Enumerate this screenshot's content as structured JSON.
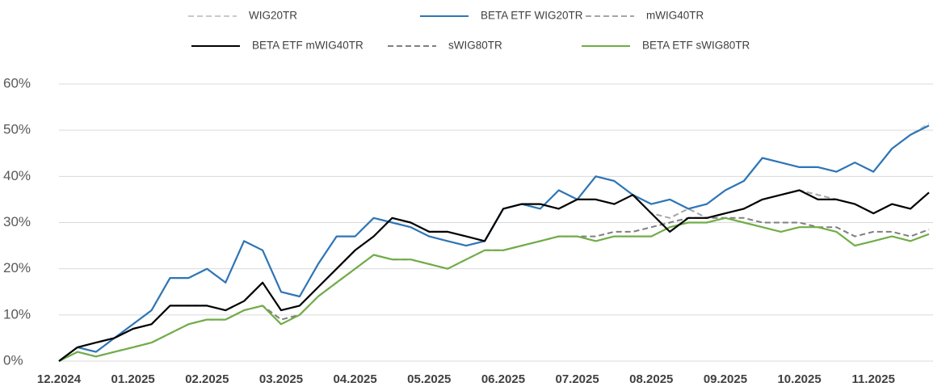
{
  "chart_data": {
    "type": "line",
    "categories": [
      "12.2024",
      null,
      null,
      null,
      "01.2025",
      null,
      null,
      null,
      "02.2025",
      null,
      null,
      null,
      "03.2025",
      null,
      null,
      null,
      "04.2025",
      null,
      null,
      null,
      "05.2025",
      null,
      null,
      null,
      "06.2025",
      null,
      null,
      null,
      "07.2025",
      null,
      null,
      null,
      "08.2025",
      null,
      null,
      null,
      "09.2025",
      null,
      null,
      null,
      "10.2025",
      null,
      null,
      null,
      "11.2025",
      null,
      null,
      null
    ],
    "series": [
      {
        "name": "WIG20TR",
        "color": "#c9c9c9",
        "dashed": true,
        "values": [
          0,
          3,
          2,
          5,
          8,
          11,
          18,
          18,
          20,
          17,
          26,
          24,
          15,
          14,
          21,
          27,
          27,
          31,
          30,
          29,
          27,
          26,
          25,
          26,
          33,
          34,
          33,
          37,
          35,
          40,
          39,
          36,
          34,
          35,
          33,
          34,
          37,
          39,
          44,
          43,
          42,
          42,
          41,
          43,
          41,
          46,
          49,
          51.5
        ]
      },
      {
        "name": "BETA ETF WIG20TR",
        "color": "#2e75b6",
        "dashed": false,
        "values": [
          0,
          3,
          2,
          5,
          8,
          11,
          18,
          18,
          20,
          17,
          26,
          24,
          15,
          14,
          21,
          27,
          27,
          31,
          30,
          29,
          27,
          26,
          25,
          26,
          33,
          34,
          33,
          37,
          35,
          40,
          39,
          36,
          34,
          35,
          33,
          34,
          37,
          39,
          44,
          43,
          42,
          42,
          41,
          43,
          41,
          46,
          49,
          51
        ]
      },
      {
        "name": "mWIG40TR",
        "color": "#a6a6a6",
        "dashed": true,
        "values": [
          0,
          3,
          4,
          5,
          7,
          8,
          12,
          12,
          12,
          11,
          13,
          17,
          11,
          12,
          16,
          20,
          24,
          27,
          31,
          30,
          28,
          28,
          27,
          26,
          33,
          34,
          34,
          33,
          35,
          35,
          34,
          36,
          32,
          31,
          33,
          31,
          32,
          33,
          35,
          36,
          37,
          36,
          35,
          34,
          32,
          34,
          33,
          36.5
        ]
      },
      {
        "name": "BETA ETF mWIG40TR",
        "color": "#000000",
        "dashed": false,
        "values": [
          0,
          3,
          4,
          5,
          7,
          8,
          12,
          12,
          12,
          11,
          13,
          17,
          11,
          12,
          16,
          20,
          24,
          27,
          31,
          30,
          28,
          28,
          27,
          26,
          33,
          34,
          34,
          33,
          35,
          35,
          34,
          36,
          32,
          28,
          31,
          31,
          32,
          33,
          35,
          36,
          37,
          35,
          35,
          34,
          32,
          34,
          33,
          36.5
        ]
      },
      {
        "name": "sWIG80TR",
        "color": "#7f7f7f",
        "dashed": true,
        "values": [
          0,
          2,
          1,
          2,
          3,
          4,
          6,
          8,
          9,
          9,
          11,
          12,
          9,
          10,
          14,
          17,
          20,
          23,
          22,
          22,
          21,
          20,
          22,
          24,
          24,
          25,
          26,
          27,
          27,
          27,
          28,
          28,
          29,
          30,
          31,
          31,
          31,
          31,
          30,
          30,
          30,
          29,
          29,
          27,
          28,
          28,
          27,
          28.5
        ]
      },
      {
        "name": "BETA ETF sWIG80TR",
        "color": "#70ad47",
        "dashed": false,
        "values": [
          0,
          2,
          1,
          2,
          3,
          4,
          6,
          8,
          9,
          9,
          11,
          12,
          8,
          10,
          14,
          17,
          20,
          23,
          22,
          22,
          21,
          20,
          22,
          24,
          24,
          25,
          26,
          27,
          27,
          26,
          27,
          27,
          27,
          29,
          30,
          30,
          31,
          30,
          29,
          28,
          29,
          29,
          28,
          25,
          26,
          27,
          26,
          27.5
        ]
      }
    ],
    "ylim": [
      0,
      60
    ],
    "yticks": [
      {
        "value": 0,
        "label": "0%"
      },
      {
        "value": 10,
        "label": "10%"
      },
      {
        "value": 20,
        "label": "20%"
      },
      {
        "value": 30,
        "label": "30%"
      },
      {
        "value": 40,
        "label": "40%"
      },
      {
        "value": 50,
        "label": "50%"
      },
      {
        "value": 60,
        "label": "60%"
      }
    ],
    "grid": true
  }
}
